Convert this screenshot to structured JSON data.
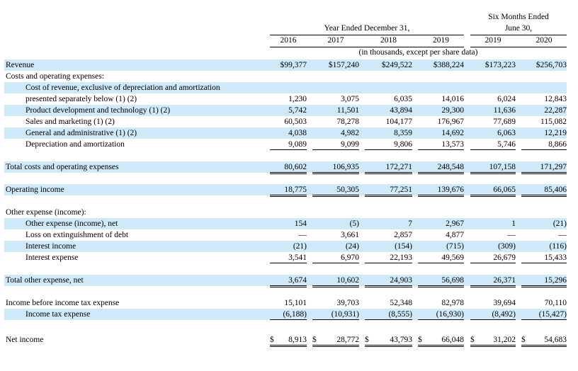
{
  "header": {
    "year_ended": "Year Ended December 31,",
    "six_months_line1": "Six Months Ended",
    "six_months_line2": "June 30,",
    "years": [
      "2016",
      "2017",
      "2018",
      "2019",
      "2019",
      "2020"
    ],
    "units_note": "(in thousands, except per share data)"
  },
  "rows": [
    {
      "label": "Revenue",
      "values": [
        "$99,377",
        "$157,240",
        "$249,522",
        "$388,224",
        "$173,223",
        "$256,703"
      ]
    },
    {
      "label": "Costs and operating expenses:",
      "values": [
        "",
        "",
        "",
        "",
        "",
        ""
      ]
    },
    {
      "label": "Cost of revenue, exclusive of depreciation and amortization",
      "values": [
        "",
        "",
        "",
        "",
        "",
        ""
      ]
    },
    {
      "label": "presented separately below (1) (2)",
      "values": [
        "1,230",
        "3,075",
        "6,035",
        "14,016",
        "6,024",
        "12,843"
      ]
    },
    {
      "label": "Product development and technology (1) (2)",
      "values": [
        "5,742",
        "11,501",
        "43,894",
        "29,300",
        "11,636",
        "22,287"
      ]
    },
    {
      "label": "Sales and marketing (1) (2)",
      "values": [
        "60,503",
        "78,278",
        "104,177",
        "176,967",
        "77,689",
        "115,082"
      ]
    },
    {
      "label": "General and administrative (1) (2)",
      "values": [
        "4,038",
        "4,982",
        "8,359",
        "14,692",
        "6,063",
        "12,219"
      ]
    },
    {
      "label": "Depreciation and amortization",
      "values": [
        "9,089",
        "9,099",
        "9,806",
        "13,573",
        "5,746",
        "8,866"
      ]
    },
    {
      "label": "Total costs and operating expenses",
      "values": [
        "80,602",
        "106,935",
        "172,271",
        "248,548",
        "107,158",
        "171,297"
      ]
    },
    {
      "label": "Operating income",
      "values": [
        "18,775",
        "50,305",
        "77,251",
        "139,676",
        "66,065",
        "85,406"
      ]
    },
    {
      "label": "Other expense (income):",
      "values": [
        "",
        "",
        "",
        "",
        "",
        ""
      ]
    },
    {
      "label": "Other expense (income), net",
      "values": [
        "154",
        "(5)",
        "7",
        "2,967",
        "1",
        "(21)"
      ]
    },
    {
      "label": "Loss on extinguishment of debt",
      "values": [
        "—",
        "3,661",
        "2,857",
        "4,877",
        "—",
        "—"
      ]
    },
    {
      "label": "Interest income",
      "values": [
        "(21)",
        "(24)",
        "(154)",
        "(715)",
        "(309)",
        "(116)"
      ]
    },
    {
      "label": "Interest expense",
      "values": [
        "3,541",
        "6,970",
        "22,193",
        "49,569",
        "26,679",
        "15,433"
      ]
    },
    {
      "label": "Total other expense, net",
      "values": [
        "3,674",
        "10,602",
        "24,903",
        "56,698",
        "26,371",
        "15,296"
      ]
    },
    {
      "label": "Income before income tax expense",
      "values": [
        "15,101",
        "39,703",
        "52,348",
        "82,978",
        "39,694",
        "70,110"
      ]
    },
    {
      "label": "Income tax expense",
      "values": [
        "(6,188)",
        "(10,931)",
        "(8,555)",
        "(16,930)",
        "(8,492)",
        "(15,427)"
      ]
    },
    {
      "label": "Net income",
      "values": [
        "$ 8,913",
        "$ 28,772",
        "$ 43,793",
        "$ 66,048",
        "$ 31,202",
        "$ 54,683"
      ]
    }
  ]
}
